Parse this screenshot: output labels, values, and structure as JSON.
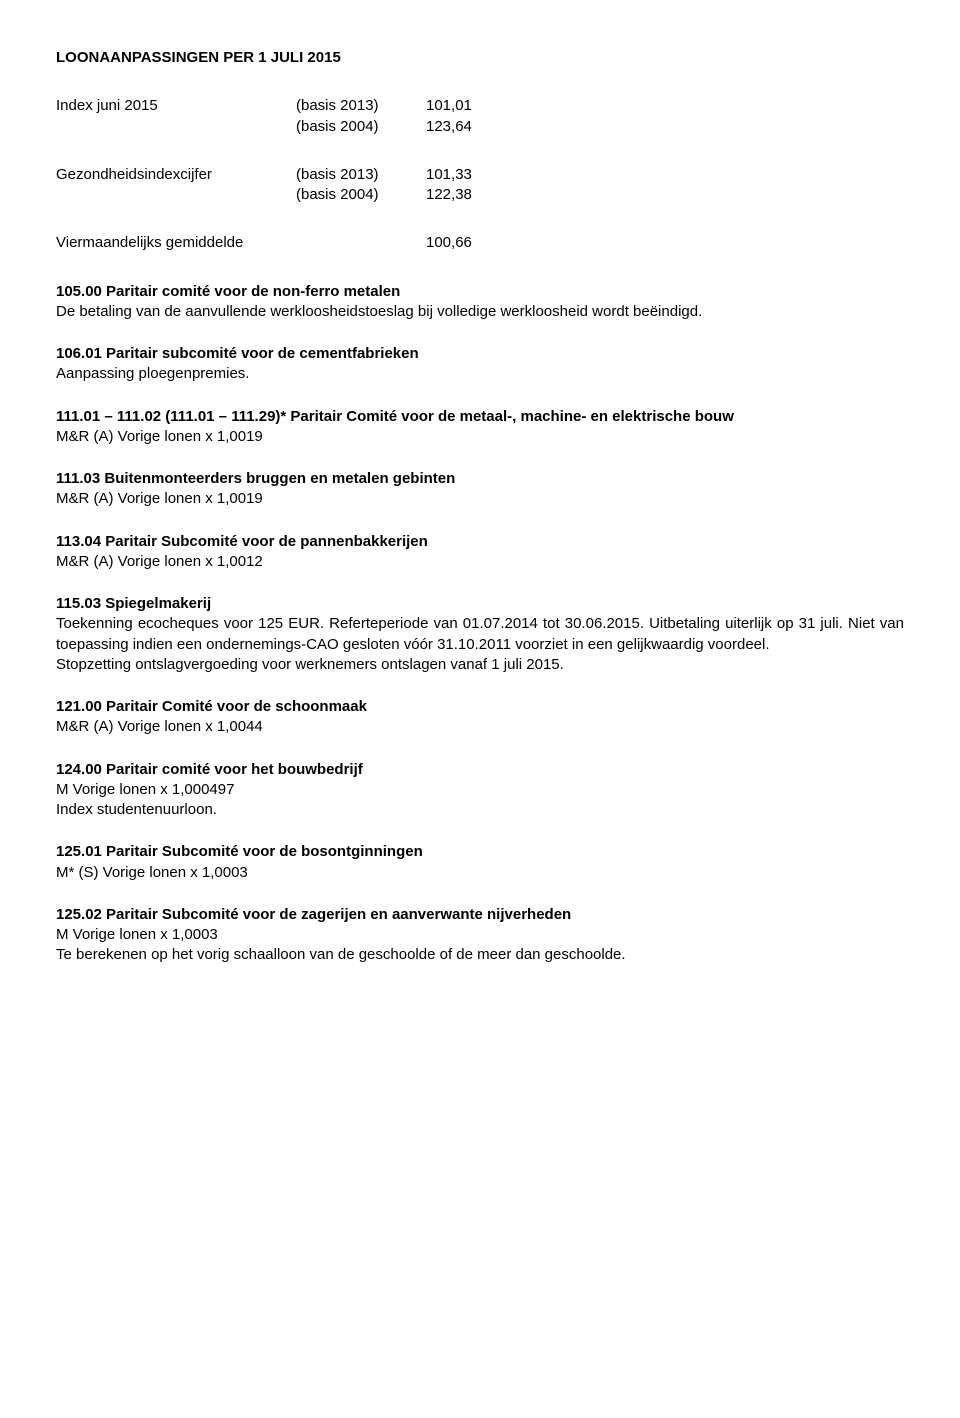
{
  "title": "LOONAANPASSINGEN PER 1 JULI 2015",
  "index": {
    "label": "Index juni 2015",
    "line1_basis": "(basis 2013)",
    "line1_val": "101,01",
    "line2_basis": "(basis 2004)",
    "line2_val": "123,64"
  },
  "gezond": {
    "label": "Gezondheidsindexcijfer",
    "line1_basis": "(basis 2013)",
    "line1_val": "101,33",
    "line2_basis": "(basis 2004)",
    "line2_val": "122,38"
  },
  "vier": {
    "label": "Viermaandelijks gemiddelde",
    "val": "100,66"
  },
  "s105": {
    "title": "105.00 Paritair comité voor de non-ferro metalen",
    "body": "De betaling van de aanvullende werkloosheidstoeslag bij volledige werkloosheid wordt beëindigd."
  },
  "s106": {
    "title": "106.01 Paritair subcomité voor de cementfabrieken",
    "body": "Aanpassing ploegenpremies."
  },
  "s111": {
    "title_part1": "111.01 – 111.02 (111.01 – 111.29)* Paritair Comité voor de metaal-, machine- en elektrische bouw",
    "body": "M&R (A)  Vorige lonen x 1,0019"
  },
  "s111_03": {
    "title": "111.03 Buitenmonteerders bruggen en metalen gebinten",
    "body": "M&R (A)  Vorige lonen x 1,0019"
  },
  "s113": {
    "title": "113.04 Paritair Subcomité voor de pannenbakkerijen",
    "body": "M&R (A) Vorige lonen x 1,0012"
  },
  "s115": {
    "title": "115.03 Spiegelmakerij",
    "body1": "Toekenning ecocheques voor 125 EUR. Referteperiode van 01.07.2014 tot 30.06.2015. Uitbetaling uiterlijk op 31 juli. Niet van toepassing indien een ondernemings-CAO gesloten vóór 31.10.2011 voorziet in een gelijkwaardig voordeel.",
    "body2": "Stopzetting ontslagvergoeding voor werknemers ontslagen vanaf 1 juli 2015."
  },
  "s121": {
    "title": "121.00 Paritair Comité voor de schoonmaak",
    "body": "M&R (A)  Vorige lonen x 1,0044"
  },
  "s124": {
    "title": "124.00 Paritair comité voor het bouwbedrijf",
    "body1": "M Vorige lonen x 1,000497",
    "body2": "Index studentenuurloon."
  },
  "s125_01": {
    "title": "125.01 Paritair Subcomité voor de bosontginningen",
    "body": "M* (S)  Vorige lonen x 1,0003"
  },
  "s125_02": {
    "title": "125.02 Paritair Subcomité voor de zagerijen en aanverwante nijverheden",
    "body1": "M  Vorige lonen x 1,0003",
    "body2": "Te berekenen op het vorig schaalloon van de geschoolde of de meer dan geschoolde."
  }
}
